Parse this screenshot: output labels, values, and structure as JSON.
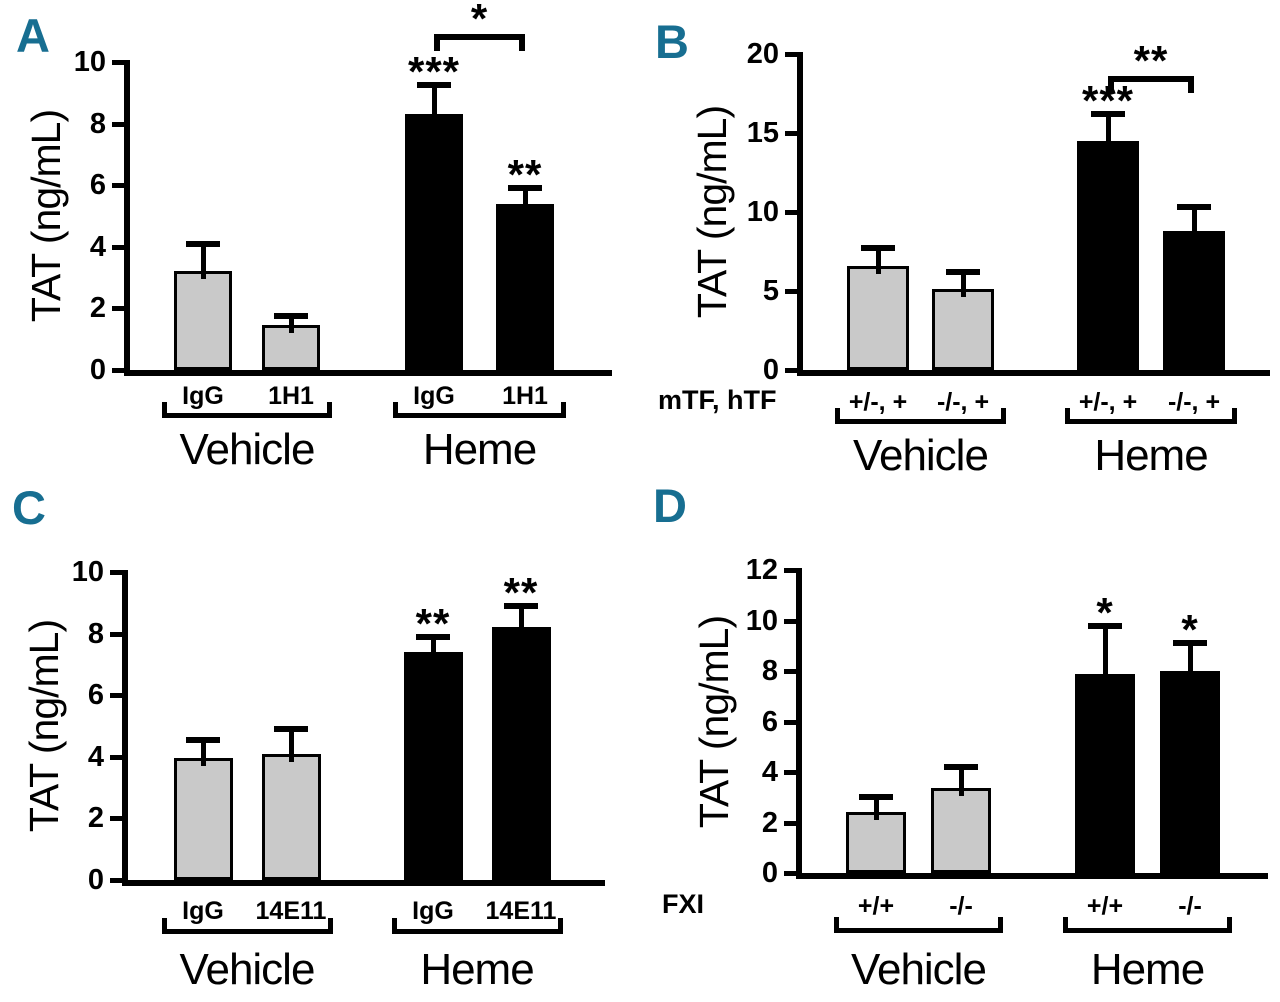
{
  "colors": {
    "panel_letter": "#176e91",
    "gray_fill": "#c9c9c9",
    "black_fill": "#000000",
    "axis": "#000000",
    "background": "#ffffff"
  },
  "chart_data": [
    {
      "type": "bar",
      "panel": "A",
      "ylabel": "TAT (ng/mL)",
      "ylim": [
        0,
        10
      ],
      "yticks": [
        0,
        2,
        4,
        6,
        8,
        10
      ],
      "row_label": "",
      "bars": [
        {
          "label": "IgG",
          "value": 3.2,
          "error": 0.9,
          "color": "gray",
          "sig": ""
        },
        {
          "label": "1H1",
          "value": 1.45,
          "error": 0.3,
          "color": "gray",
          "sig": ""
        },
        {
          "label": "IgG",
          "value": 8.3,
          "error": 0.95,
          "color": "black",
          "sig": "***"
        },
        {
          "label": "1H1",
          "value": 5.4,
          "error": 0.5,
          "color": "black",
          "sig": "**"
        }
      ],
      "groups": [
        {
          "label": "Vehicle",
          "bars": [
            0,
            1
          ]
        },
        {
          "label": "Heme",
          "bars": [
            2,
            3
          ]
        }
      ],
      "comparison": {
        "bars": [
          2,
          3
        ],
        "label": "*",
        "y": 10.9
      }
    },
    {
      "type": "bar",
      "panel": "B",
      "ylabel": "TAT (ng/mL)",
      "ylim": [
        0,
        20
      ],
      "yticks": [
        0,
        5,
        10,
        15,
        20
      ],
      "row_label": "mTF, hTF",
      "bars": [
        {
          "label": "+/-, +",
          "value": 6.6,
          "error": 1.1,
          "color": "gray",
          "sig": ""
        },
        {
          "label": "-/-, +",
          "value": 5.1,
          "error": 1.1,
          "color": "gray",
          "sig": ""
        },
        {
          "label": "+/-, +",
          "value": 14.5,
          "error": 1.7,
          "color": "black",
          "sig": "***"
        },
        {
          "label": "-/-, +",
          "value": 8.8,
          "error": 1.5,
          "color": "black",
          "sig": ""
        }
      ],
      "groups": [
        {
          "label": "Vehicle",
          "bars": [
            0,
            1
          ]
        },
        {
          "label": "Heme",
          "bars": [
            2,
            3
          ]
        }
      ],
      "comparison": {
        "bars": [
          2,
          3
        ],
        "label": "**",
        "y": 18.6
      }
    },
    {
      "type": "bar",
      "panel": "C",
      "ylabel": "TAT (ng/mL)",
      "ylim": [
        0,
        10
      ],
      "yticks": [
        0,
        2,
        4,
        6,
        8,
        10
      ],
      "row_label": "",
      "bars": [
        {
          "label": "IgG",
          "value": 3.95,
          "error": 0.6,
          "color": "gray",
          "sig": ""
        },
        {
          "label": "14E11",
          "value": 4.1,
          "error": 0.8,
          "color": "gray",
          "sig": ""
        },
        {
          "label": "IgG",
          "value": 7.4,
          "error": 0.5,
          "color": "black",
          "sig": "**"
        },
        {
          "label": "14E11",
          "value": 8.2,
          "error": 0.7,
          "color": "black",
          "sig": "**"
        }
      ],
      "groups": [
        {
          "label": "Vehicle",
          "bars": [
            0,
            1
          ]
        },
        {
          "label": "Heme",
          "bars": [
            2,
            3
          ]
        }
      ],
      "comparison": null
    },
    {
      "type": "bar",
      "panel": "D",
      "ylabel": "TAT (ng/mL)",
      "ylim": [
        0,
        12
      ],
      "yticks": [
        0,
        2,
        4,
        6,
        8,
        10,
        12
      ],
      "row_label": "FXI",
      "bars": [
        {
          "label": "+/+",
          "value": 2.4,
          "error": 0.6,
          "color": "gray",
          "sig": ""
        },
        {
          "label": "-/-",
          "value": 3.35,
          "error": 0.85,
          "color": "gray",
          "sig": ""
        },
        {
          "label": "+/+",
          "value": 7.9,
          "error": 1.9,
          "color": "black",
          "sig": "*"
        },
        {
          "label": "-/-",
          "value": 8.0,
          "error": 1.1,
          "color": "black",
          "sig": "*"
        }
      ],
      "groups": [
        {
          "label": "Vehicle",
          "bars": [
            0,
            1
          ]
        },
        {
          "label": "Heme",
          "bars": [
            2,
            3
          ]
        }
      ],
      "comparison": null
    }
  ]
}
